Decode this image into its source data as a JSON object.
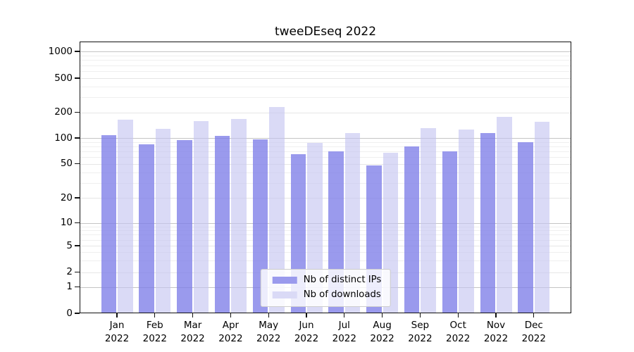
{
  "chart_data": {
    "type": "bar",
    "title": "tweeDEseq 2022",
    "categories": [
      "Jan 2022",
      "Feb 2022",
      "Mar 2022",
      "Apr 2022",
      "May 2022",
      "Jun 2022",
      "Jul 2022",
      "Aug 2022",
      "Sep 2022",
      "Oct 2022",
      "Nov 2022",
      "Dec 2022"
    ],
    "series": [
      {
        "name": "Nb of distinct IPs",
        "swatch_color": "#9a9aed",
        "fill_color": "rgba(126,126,232,0.78)",
        "values": [
          107,
          84,
          95,
          105,
          97,
          65,
          70,
          48,
          80,
          70,
          114,
          90
        ]
      },
      {
        "name": "Nb of downloads",
        "swatch_color": "#dadaf6",
        "fill_color": "rgba(196,196,241,0.62)",
        "values": [
          165,
          128,
          158,
          168,
          232,
          88,
          114,
          67,
          131,
          127,
          179,
          154
        ]
      }
    ],
    "yticks": [
      0,
      1,
      2,
      5,
      10,
      20,
      50,
      100,
      200,
      500,
      1000
    ],
    "ylim": [
      0,
      1300
    ],
    "yscale": "log-like with zero baseline",
    "xlabel": "",
    "ylabel": "",
    "grid": true,
    "legend_position": "lower center"
  },
  "colors": {
    "grid_decade": "#c4c4c4",
    "grid_submajor": "#e6e6e6",
    "grid_minor": "#efefef",
    "axis": "#111111"
  }
}
